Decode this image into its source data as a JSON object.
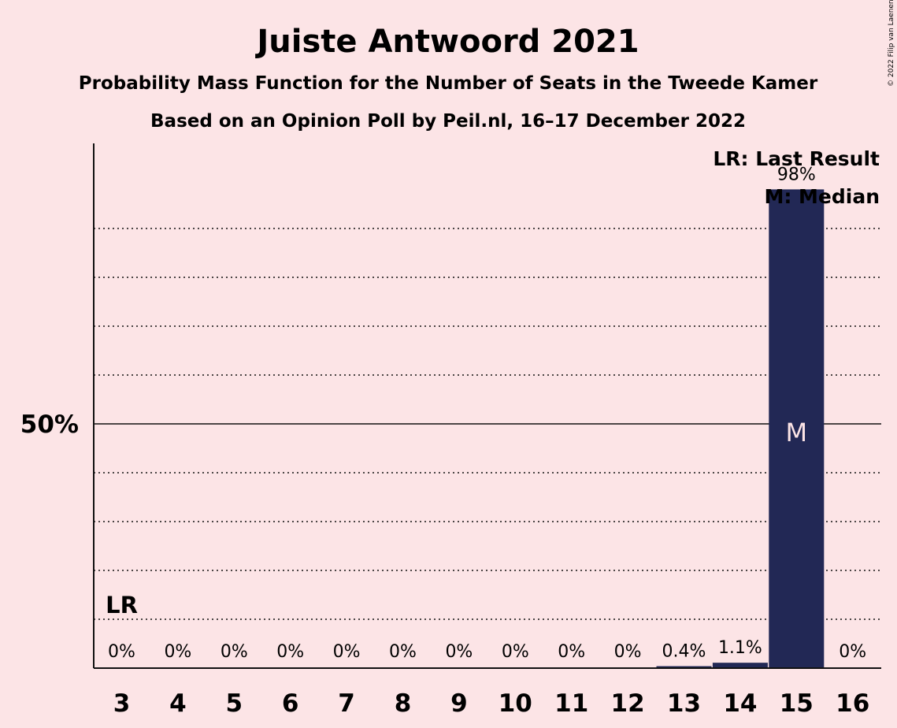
{
  "chart_data": {
    "type": "bar",
    "title": "Juiste Antwoord 2021",
    "subtitle_lines": [
      "Probability Mass Function for the Number of Seats in the Tweede Kamer",
      "Based on an Opinion Poll by Peil.nl, 16–17 December 2022"
    ],
    "categories": [
      "3",
      "4",
      "5",
      "6",
      "7",
      "8",
      "9",
      "10",
      "11",
      "12",
      "13",
      "14",
      "15",
      "16"
    ],
    "values": [
      0,
      0,
      0,
      0,
      0,
      0,
      0,
      0,
      0,
      0,
      0.4,
      1.1,
      98,
      0
    ],
    "value_labels": [
      "0%",
      "0%",
      "0%",
      "0%",
      "0%",
      "0%",
      "0%",
      "0%",
      "0%",
      "0%",
      "0.4%",
      "1.1%",
      "98%",
      "0%"
    ],
    "ylim": [
      0,
      100
    ],
    "y_tick_labels": [
      {
        "value": 50,
        "label": "50%"
      }
    ],
    "gridlines": [
      10,
      20,
      30,
      40,
      60,
      70,
      80,
      90
    ],
    "last_result": {
      "category": "3",
      "label": "LR"
    },
    "median": {
      "category": "15",
      "label": "M"
    },
    "legend": {
      "placement": "top-right",
      "entries": [
        "LR: Last Result",
        "M: Median"
      ]
    },
    "bar_color": "#222855",
    "median_color": "#fce4e6"
  },
  "copyright": "© 2022 Filip van Laenen"
}
